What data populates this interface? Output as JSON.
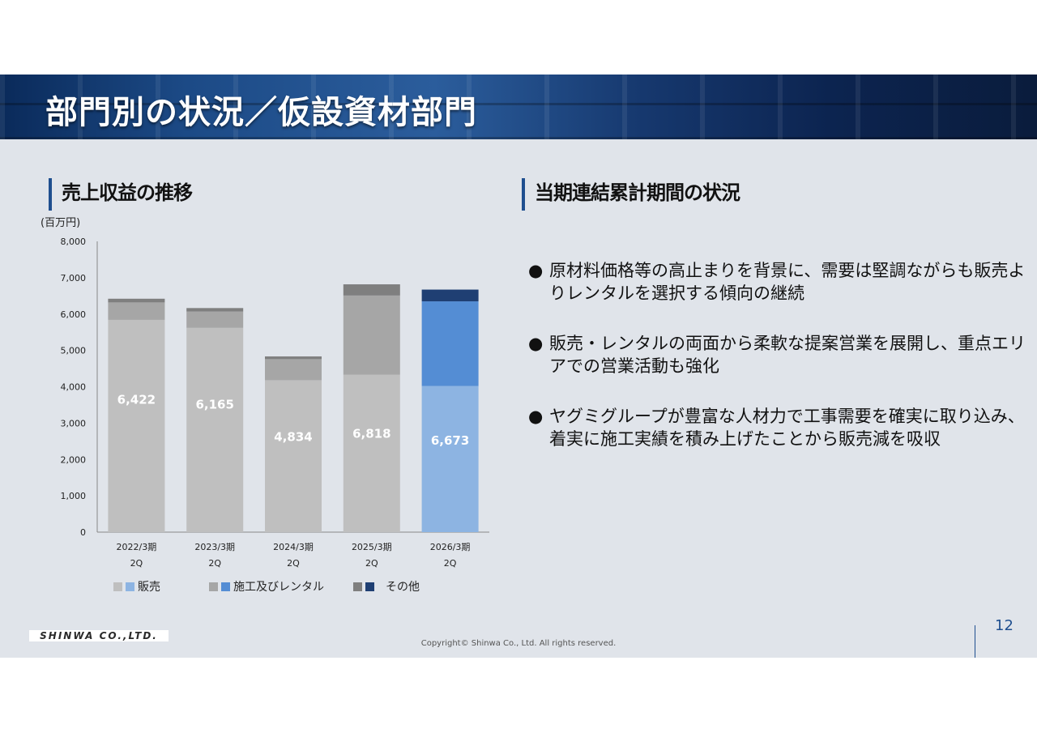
{
  "title": "部門別の状況／仮設資材部門",
  "left_heading": "売上収益の推移",
  "right_heading": "当期連結累計期間の状況",
  "unit_label": "(百万円)",
  "chart_data": {
    "type": "bar",
    "stacked": true,
    "categories": [
      [
        "2022/3期",
        "2Q"
      ],
      [
        "2023/3期",
        "2Q"
      ],
      [
        "2024/3期",
        "2Q"
      ],
      [
        "2025/3期",
        "2Q"
      ],
      [
        "2026/3期",
        "2Q"
      ]
    ],
    "ylim": [
      0,
      8000
    ],
    "yticks": [
      "0",
      "1,000",
      "2,000",
      "3,000",
      "4,000",
      "5,000",
      "6,000",
      "7,000",
      "8,000"
    ],
    "totals": [
      "6,422",
      "6,165",
      "4,834",
      "6,818",
      "6,673"
    ],
    "series": [
      {
        "name": "販売",
        "values": [
          5840,
          5620,
          4180,
          4330,
          4020
        ],
        "colors": [
          "#bfbfbf",
          "#bfbfbf",
          "#bfbfbf",
          "#bfbfbf",
          "#8db4e2"
        ]
      },
      {
        "name": "施工及びレンタル",
        "values": [
          480,
          450,
          580,
          2180,
          2330
        ],
        "colors": [
          "#a6a6a6",
          "#a6a6a6",
          "#a6a6a6",
          "#a6a6a6",
          "#548dd4"
        ]
      },
      {
        "name": "その他",
        "values": [
          102,
          95,
          74,
          308,
          323
        ],
        "colors": [
          "#7f7f7f",
          "#7f7f7f",
          "#7f7f7f",
          "#7f7f7f",
          "#1f3f73"
        ]
      }
    ],
    "legend": [
      {
        "label": "販売",
        "colors": [
          "#bfbfbf",
          "#8db4e2"
        ]
      },
      {
        "label": "施工及びレンタル",
        "colors": [
          "#a6a6a6",
          "#548dd4"
        ]
      },
      {
        "label": "その他",
        "colors": [
          "#7f7f7f",
          "#1f3f73"
        ]
      }
    ]
  },
  "bullets": [
    "原材料価格等の高止まりを背景に、需要は堅調ながらも販売よりレンタルを選択する傾向の継続",
    "販売・レンタルの両面から柔軟な提案営業を展開し、重点エリアでの営業活動も強化",
    "ヤグミグループが豊富な人材力で工事需要を確実に取り込み、着実に施工実績を積み上げたことから販売減を吸収"
  ],
  "bullet_symbol": "●",
  "logo_text": "SHINWA CO.,LTD.",
  "copyright": "Copyright© Shinwa Co., Ltd. All rights reserved.",
  "page_number": "12"
}
